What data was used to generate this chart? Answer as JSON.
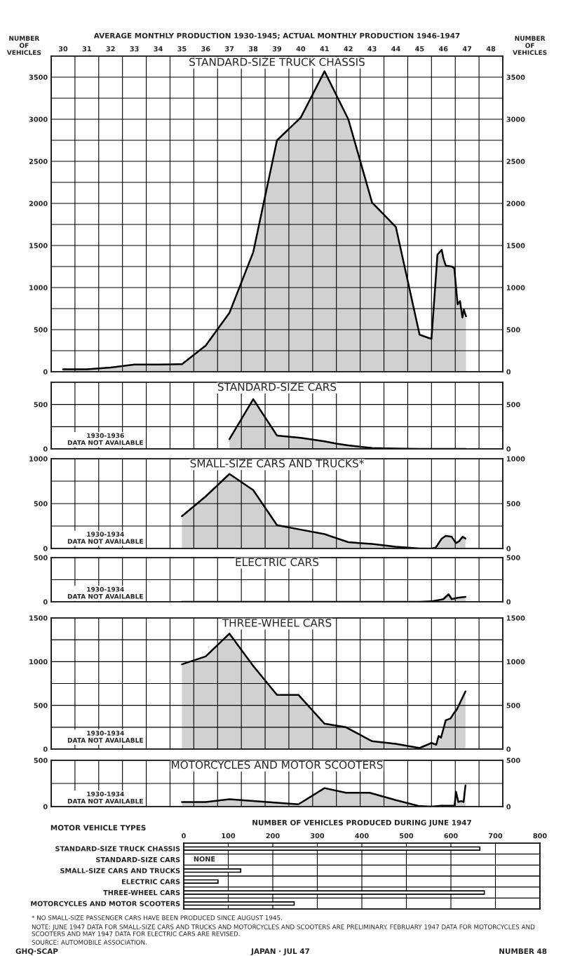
{
  "chart_data": [
    {
      "type": "area",
      "title": "STANDARD-SIZE TRUCK CHASSIS",
      "xlabel": "AVERAGE MONTHLY PRODUCTION 1930-1945; ACTUAL MONTHLY PRODUCTION 1946-1947",
      "ylabel": "NUMBER\nOF\nVEHICLES",
      "y2label": "NUMBER\nOF\nVEHICLES",
      "x": [
        30.5,
        31.5,
        32.5,
        33.5,
        34.5,
        35.5,
        36.5,
        37.5,
        38.5,
        39.5,
        40.5,
        41.5,
        42.5,
        43.5,
        43.95,
        44.5,
        45.5,
        46.0,
        46.25,
        46.43,
        46.5,
        46.6,
        46.85,
        46.96,
        47.1,
        47.2,
        47.3,
        47.36,
        47.45
      ],
      "series": [
        {
          "color": "#000000",
          "values": [
            30,
            30,
            50,
            85,
            85,
            90,
            310,
            700,
            1420,
            2750,
            3020,
            3570,
            3000,
            2010,
            1880,
            1720,
            440,
            390,
            1390,
            1450,
            1350,
            1260,
            1250,
            1230,
            800,
            840,
            645,
            740,
            660
          ]
        }
      ],
      "xlim": [
        30,
        49
      ],
      "xticks": [
        {
          "value": 30,
          "label": null
        },
        {
          "value": 30.5,
          "label": "30"
        },
        {
          "value": 31,
          "label": null
        },
        {
          "value": 31.5,
          "label": "31"
        },
        {
          "value": 32,
          "label": null
        },
        {
          "value": 32.5,
          "label": "32"
        },
        {
          "value": 33,
          "label": null
        },
        {
          "value": 33.5,
          "label": "33"
        },
        {
          "value": 34,
          "label": null
        },
        {
          "value": 34.5,
          "label": "34"
        },
        {
          "value": 35,
          "label": null
        },
        {
          "value": 35.5,
          "label": "35"
        },
        {
          "value": 36,
          "label": null
        },
        {
          "value": 36.5,
          "label": "36"
        },
        {
          "value": 37,
          "label": null
        },
        {
          "value": 37.5,
          "label": "37"
        },
        {
          "value": 38,
          "label": null
        },
        {
          "value": 38.5,
          "label": "38"
        },
        {
          "value": 39,
          "label": null
        },
        {
          "value": 39.5,
          "label": "39"
        },
        {
          "value": 40,
          "label": null
        },
        {
          "value": 40.5,
          "label": "40"
        },
        {
          "value": 41,
          "label": null
        },
        {
          "value": 41.5,
          "label": "41"
        },
        {
          "value": 42,
          "label": null
        },
        {
          "value": 42.5,
          "label": "42"
        },
        {
          "value": 43,
          "label": null
        },
        {
          "value": 43.5,
          "label": "43"
        },
        {
          "value": 44,
          "label": null
        },
        {
          "value": 44.5,
          "label": "44"
        },
        {
          "value": 45,
          "label": null
        },
        {
          "value": 45.5,
          "label": "45"
        },
        {
          "value": 46,
          "label": null
        },
        {
          "value": 46.5,
          "label": "46"
        },
        {
          "value": 47,
          "label": null
        },
        {
          "value": 47.5,
          "label": "47"
        },
        {
          "value": 48,
          "label": null
        },
        {
          "value": 48.5,
          "label": "48"
        },
        {
          "value": 49,
          "label": null
        }
      ],
      "ylim": [
        0,
        3750
      ],
      "yticks": [
        0,
        {
          "value": 250,
          "label": null
        },
        500,
        {
          "value": 750,
          "label": null
        },
        1000,
        {
          "value": 1250,
          "label": null
        },
        1500,
        {
          "value": 1750,
          "label": null
        },
        2000,
        {
          "value": 2250,
          "label": null
        },
        2500,
        {
          "value": 2750,
          "label": null
        },
        3000,
        {
          "value": 3250,
          "label": null
        },
        3500
      ],
      "y2lim": [
        0,
        3750
      ],
      "y2ticks": [
        0,
        500,
        1000,
        1500,
        2000,
        2500,
        3000,
        3500
      ],
      "grid": true
    },
    {
      "type": "area",
      "title": "STANDARD-SIZE CARS",
      "annotations": [
        "1930-1936\nDATA NOT AVAILABLE"
      ],
      "x": [
        37.5,
        38.5,
        39.5,
        40.5,
        41.5,
        42.0,
        42.5,
        43.5,
        44.5,
        45.5,
        46.0,
        47.45
      ],
      "series": [
        {
          "color": "#000000",
          "values": [
            110,
            560,
            150,
            125,
            85,
            60,
            40,
            10,
            3,
            0,
            0,
            0
          ]
        }
      ],
      "xlim": [
        30,
        49
      ],
      "xticks": [
        {
          "value": 30,
          "label": null
        },
        {
          "value": 31,
          "label": null
        },
        {
          "value": 32,
          "label": null
        },
        {
          "value": 33,
          "label": null
        },
        {
          "value": 34,
          "label": null
        },
        {
          "value": 35,
          "label": null
        },
        {
          "value": 36,
          "label": null
        },
        {
          "value": 37,
          "label": null
        },
        {
          "value": 38,
          "label": null
        },
        {
          "value": 39,
          "label": null
        },
        {
          "value": 40,
          "label": null
        },
        {
          "value": 41,
          "label": null
        },
        {
          "value": 42,
          "label": null
        },
        {
          "value": 43,
          "label": null
        },
        {
          "value": 44,
          "label": null
        },
        {
          "value": 45,
          "label": null
        },
        {
          "value": 46,
          "label": null
        },
        {
          "value": 47,
          "label": null
        },
        {
          "value": 48,
          "label": null
        },
        {
          "value": 49,
          "label": null
        }
      ],
      "ylim": [
        0,
        750
      ],
      "yticks": [
        0,
        {
          "value": 250,
          "label": null
        },
        500
      ],
      "y2lim": [
        0,
        750
      ],
      "y2ticks": [
        0,
        500
      ],
      "grid": true,
      "tick_labels": "y"
    },
    {
      "type": "area",
      "title": "SMALL-SIZE CARS AND TRUCKS*",
      "annotations": [
        "1930-1934\nDATA NOT AVAILABLE"
      ],
      "x": [
        35.5,
        36.5,
        37.5,
        38.5,
        39.5,
        40.5,
        41.5,
        42.5,
        43.5,
        44.5,
        45.5,
        46.0,
        46.18,
        46.43,
        46.6,
        46.85,
        47.03,
        47.16,
        47.31,
        47.43
      ],
      "series": [
        {
          "color": "#000000",
          "values": [
            360,
            580,
            830,
            650,
            260,
            210,
            160,
            70,
            50,
            20,
            0,
            0,
            10,
            110,
            140,
            130,
            60,
            80,
            130,
            110
          ]
        }
      ],
      "xlim": [
        30,
        49
      ],
      "xticks": [
        {
          "value": 30,
          "label": null
        },
        {
          "value": 31,
          "label": null
        },
        {
          "value": 32,
          "label": null
        },
        {
          "value": 33,
          "label": null
        },
        {
          "value": 34,
          "label": null
        },
        {
          "value": 35,
          "label": null
        },
        {
          "value": 36,
          "label": null
        },
        {
          "value": 37,
          "label": null
        },
        {
          "value": 38,
          "label": null
        },
        {
          "value": 39,
          "label": null
        },
        {
          "value": 40,
          "label": null
        },
        {
          "value": 41,
          "label": null
        },
        {
          "value": 42,
          "label": null
        },
        {
          "value": 43,
          "label": null
        },
        {
          "value": 44,
          "label": null
        },
        {
          "value": 45,
          "label": null
        },
        {
          "value": 46,
          "label": null
        },
        {
          "value": 47,
          "label": null
        },
        {
          "value": 48,
          "label": null
        },
        {
          "value": 49,
          "label": null
        }
      ],
      "ylim": [
        0,
        1000
      ],
      "yticks": [
        0,
        {
          "value": 250,
          "label": null
        },
        500,
        {
          "value": 750,
          "label": null
        },
        1000
      ],
      "y2lim": [
        0,
        1000
      ],
      "y2ticks": [
        0,
        500,
        1000
      ],
      "grid": true,
      "tick_labels": "y"
    },
    {
      "type": "area",
      "title": "ELECTRIC CARS",
      "annotations": [
        "1930-1934\nDATA NOT AVAILABLE"
      ],
      "x": [
        35.5,
        40.5,
        45.5,
        46.0,
        46.5,
        46.72,
        46.85,
        47.1,
        47.43
      ],
      "series": [
        {
          "color": "#000000",
          "values": [
            0,
            0,
            0,
            5,
            30,
            85,
            30,
            45,
            55
          ]
        }
      ],
      "xlim": [
        30,
        49
      ],
      "xticks": [
        {
          "value": 30,
          "label": null
        },
        {
          "value": 31,
          "label": null
        },
        {
          "value": 32,
          "label": null
        },
        {
          "value": 33,
          "label": null
        },
        {
          "value": 34,
          "label": null
        },
        {
          "value": 35,
          "label": null
        },
        {
          "value": 36,
          "label": null
        },
        {
          "value": 37,
          "label": null
        },
        {
          "value": 38,
          "label": null
        },
        {
          "value": 39,
          "label": null
        },
        {
          "value": 40,
          "label": null
        },
        {
          "value": 41,
          "label": null
        },
        {
          "value": 42,
          "label": null
        },
        {
          "value": 43,
          "label": null
        },
        {
          "value": 44,
          "label": null
        },
        {
          "value": 45,
          "label": null
        },
        {
          "value": 46,
          "label": null
        },
        {
          "value": 47,
          "label": null
        },
        {
          "value": 48,
          "label": null
        },
        {
          "value": 49,
          "label": null
        }
      ],
      "ylim": [
        0,
        500
      ],
      "yticks": [
        0,
        {
          "value": 250,
          "label": null
        },
        500
      ],
      "y2lim": [
        0,
        500
      ],
      "y2ticks": [
        0,
        500
      ],
      "grid": true,
      "tick_labels": "y"
    },
    {
      "type": "area",
      "title": "THREE-WHEEL CARS",
      "annotations": [
        "1930-1934\nDATA NOT AVAILABLE"
      ],
      "x": [
        35.5,
        36.5,
        37.5,
        38.5,
        39.5,
        40.4,
        41.5,
        42.4,
        43.5,
        44.5,
        45.5,
        46.0,
        46.2,
        46.3,
        46.4,
        46.6,
        46.8,
        46.94,
        47.06,
        47.43
      ],
      "series": [
        {
          "color": "#000000",
          "values": [
            970,
            1060,
            1320,
            950,
            620,
            620,
            290,
            250,
            90,
            60,
            12,
            70,
            50,
            150,
            130,
            330,
            350,
            410,
            450,
            660
          ]
        }
      ],
      "xlim": [
        30,
        49
      ],
      "xticks": [
        {
          "value": 30,
          "label": null
        },
        {
          "value": 31,
          "label": null
        },
        {
          "value": 32,
          "label": null
        },
        {
          "value": 33,
          "label": null
        },
        {
          "value": 34,
          "label": null
        },
        {
          "value": 35,
          "label": null
        },
        {
          "value": 36,
          "label": null
        },
        {
          "value": 37,
          "label": null
        },
        {
          "value": 38,
          "label": null
        },
        {
          "value": 39,
          "label": null
        },
        {
          "value": 40,
          "label": null
        },
        {
          "value": 41,
          "label": null
        },
        {
          "value": 42,
          "label": null
        },
        {
          "value": 43,
          "label": null
        },
        {
          "value": 44,
          "label": null
        },
        {
          "value": 45,
          "label": null
        },
        {
          "value": 46,
          "label": null
        },
        {
          "value": 47,
          "label": null
        },
        {
          "value": 48,
          "label": null
        },
        {
          "value": 49,
          "label": null
        }
      ],
      "ylim": [
        0,
        1500
      ],
      "yticks": [
        0,
        {
          "value": 250,
          "label": null
        },
        500,
        {
          "value": 750,
          "label": null
        },
        1000,
        {
          "value": 1250,
          "label": null
        },
        1500
      ],
      "y2lim": [
        0,
        1500
      ],
      "y2ticks": [
        0,
        500,
        1000,
        1500
      ],
      "grid": true,
      "tick_labels": "y"
    },
    {
      "type": "area",
      "title": "MOTORCYCLES AND MOTOR SCOOTERS",
      "annotations": [
        "1930-1934\nDATA NOT AVAILABLE"
      ],
      "x": [
        35.5,
        36.5,
        37.5,
        38.5,
        40.4,
        41.5,
        42.4,
        43.4,
        44.5,
        45.5,
        46.0,
        46.4,
        46.97,
        47.03,
        47.13,
        47.25,
        47.35,
        47.43
      ],
      "series": [
        {
          "color": "#000000",
          "values": [
            50,
            50,
            80,
            60,
            25,
            200,
            150,
            150,
            70,
            5,
            0,
            10,
            10,
            160,
            50,
            60,
            50,
            230
          ]
        }
      ],
      "xlim": [
        30,
        49
      ],
      "xticks": [
        {
          "value": 30,
          "label": null
        },
        {
          "value": 31,
          "label": null
        },
        {
          "value": 32,
          "label": null
        },
        {
          "value": 33,
          "label": null
        },
        {
          "value": 34,
          "label": null
        },
        {
          "value": 35,
          "label": null
        },
        {
          "value": 36,
          "label": null
        },
        {
          "value": 37,
          "label": null
        },
        {
          "value": 38,
          "label": null
        },
        {
          "value": 39,
          "label": null
        },
        {
          "value": 40,
          "label": null
        },
        {
          "value": 41,
          "label": null
        },
        {
          "value": 42,
          "label": null
        },
        {
          "value": 43,
          "label": null
        },
        {
          "value": 44,
          "label": null
        },
        {
          "value": 45,
          "label": null
        },
        {
          "value": 46,
          "label": null
        },
        {
          "value": 47,
          "label": null
        },
        {
          "value": 48,
          "label": null
        },
        {
          "value": 49,
          "label": null
        }
      ],
      "ylim": [
        0,
        500
      ],
      "yticks": [
        0,
        {
          "value": 250,
          "label": null
        },
        500
      ],
      "y2lim": [
        0,
        500
      ],
      "y2ticks": [
        0,
        500
      ],
      "grid": true,
      "tick_labels": "y"
    },
    {
      "type": "bar",
      "orientation": "horizontal",
      "xlabel": "NUMBER OF VEHICLES PRODUCED DURING JUNE 1947",
      "ylabel": "MOTOR VEHICLE TYPES",
      "categories": [
        "STANDARD-SIZE TRUCK CHASSIS",
        "STANDARD-SIZE CARS",
        "SMALL-SIZE CARS AND TRUCKS",
        "ELECTRIC CARS",
        "THREE-WHEEL CARS",
        "MOTORCYCLES AND MOTOR SCOOTERS"
      ],
      "values": [
        665,
        null,
        128,
        77,
        675,
        248
      ],
      "value_labels": [
        null,
        "NONE",
        null,
        null,
        null,
        null
      ],
      "color": "#ffffff",
      "xlim": [
        0,
        800
      ],
      "xticks": [
        0,
        100,
        200,
        300,
        400,
        500,
        600,
        700,
        800
      ],
      "grid": "x",
      "annotations": [
        "* NO SMALL-SIZE PASSENGER CARS HAVE BEEN PRODUCED SINCE AUGUST 1945.",
        "NOTE: JUNE 1947 DATA FOR SMALL-SIZE CARS AND TRUCKS AND MOTORCYCLES AND SCOOTERS ARE PRELIMINARY. FEBRUARY 1947 DATA FOR MOTORCYCLES AND SCOOTERS AND MAY 1947 DATA FOR ELECTRIC CARS ARE REVISED.",
        "SOURCE: AUTOMOBILE ASSOCIATION.",
        "GHQ·SCAP",
        "JAPAN · JUL 47",
        "NUMBER 48"
      ]
    }
  ]
}
